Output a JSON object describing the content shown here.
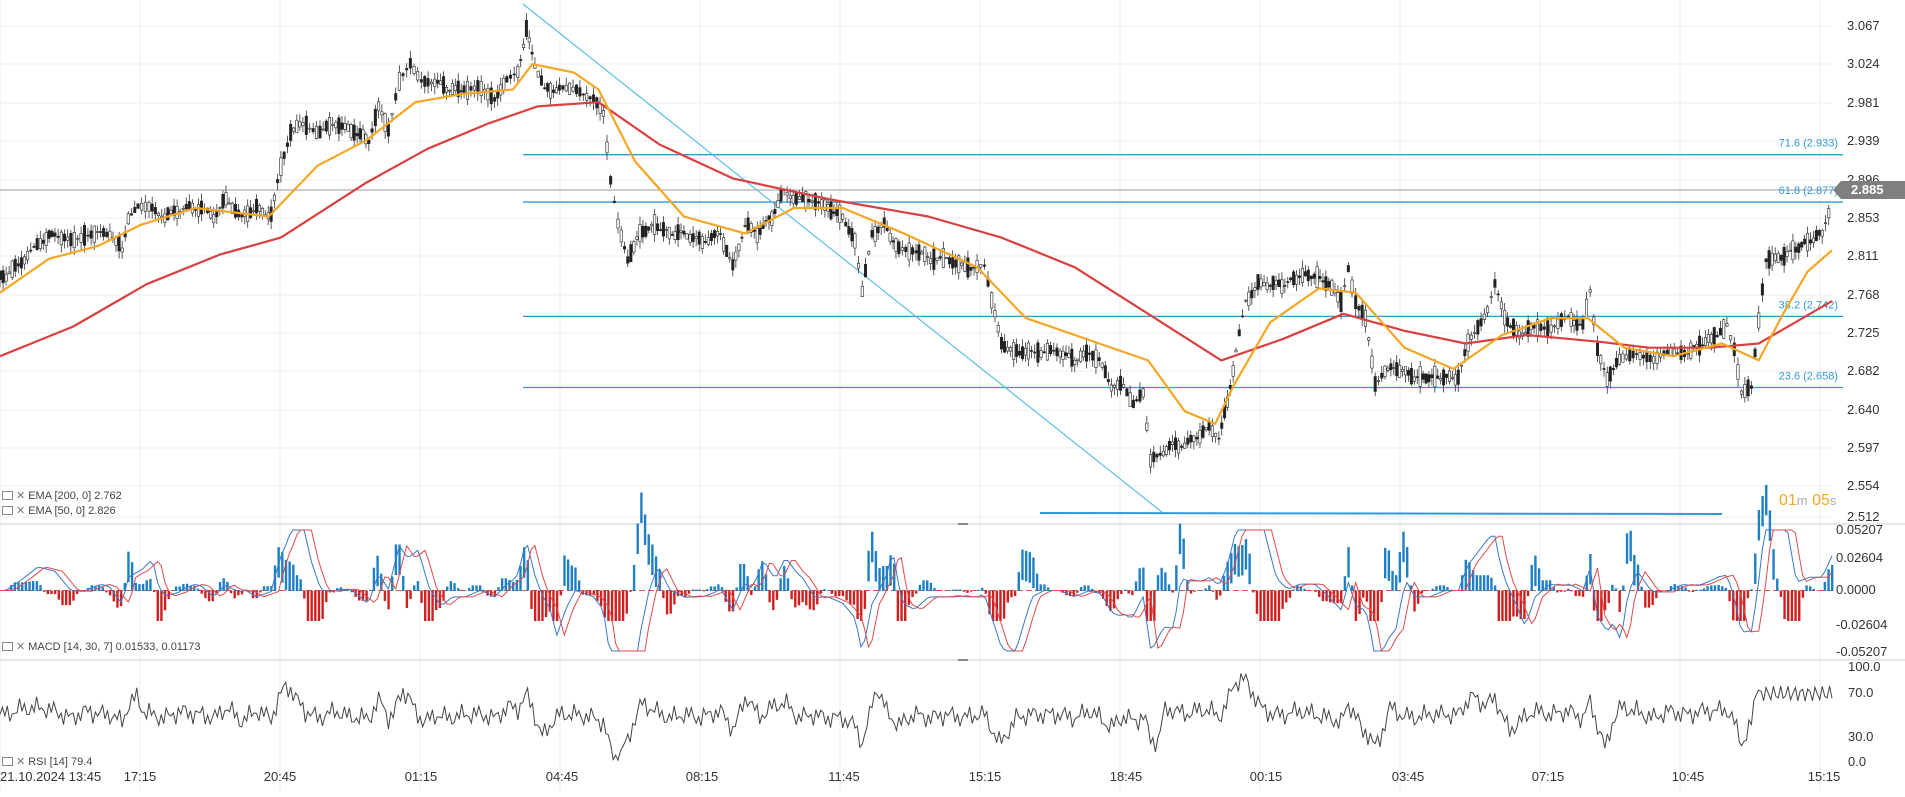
{
  "chart_data": [
    {
      "type": "candlestick",
      "panel": "price",
      "time_labels": [
        "21.10.2024  13:45",
        "17:15",
        "20:45",
        "01:15",
        "04:45",
        "08:15",
        "11:45",
        "15:15",
        "18:45",
        "00:15",
        "03:45",
        "07:15",
        "10:45",
        "15:15"
      ],
      "y_ticks": [
        "3.067",
        "3.024",
        "2.981",
        "2.939",
        "2.896",
        "2.853",
        "2.811",
        "2.768",
        "2.725",
        "2.682",
        "2.640",
        "2.597",
        "2.554",
        "2.512"
      ],
      "ylim": [
        2.505,
        3.085
      ],
      "current_price": "2.885",
      "price_series": [
        [
          0,
          2.79
        ],
        [
          5,
          2.79
        ],
        [
          20,
          2.81
        ],
        [
          33,
          2.83
        ],
        [
          45,
          2.84
        ],
        [
          58,
          2.83
        ],
        [
          72,
          2.84
        ],
        [
          90,
          2.84
        ],
        [
          100,
          2.82
        ],
        [
          105,
          2.86
        ],
        [
          113,
          2.87
        ],
        [
          122,
          2.87
        ],
        [
          135,
          2.86
        ],
        [
          150,
          2.87
        ],
        [
          165,
          2.87
        ],
        [
          175,
          2.86
        ],
        [
          185,
          2.88
        ],
        [
          198,
          2.86
        ],
        [
          210,
          2.87
        ],
        [
          222,
          2.86
        ],
        [
          230,
          2.92
        ],
        [
          238,
          2.96
        ],
        [
          248,
          2.97
        ],
        [
          262,
          2.96
        ],
        [
          275,
          2.97
        ],
        [
          290,
          2.96
        ],
        [
          302,
          2.95
        ],
        [
          310,
          2.99
        ],
        [
          318,
          2.96
        ],
        [
          327,
          3.02
        ],
        [
          336,
          3.04
        ],
        [
          345,
          3.02
        ],
        [
          356,
          3.02
        ],
        [
          368,
          3.01
        ],
        [
          380,
          3.01
        ],
        [
          394,
          3.01
        ],
        [
          405,
          3.0
        ],
        [
          415,
          3.02
        ],
        [
          424,
          3.03
        ],
        [
          431,
          3.08
        ],
        [
          438,
          3.04
        ],
        [
          446,
          3.01
        ],
        [
          458,
          3.01
        ],
        [
          472,
          3.01
        ],
        [
          486,
          3.0
        ],
        [
          494,
          2.98
        ],
        [
          500,
          2.9
        ],
        [
          506,
          2.85
        ],
        [
          514,
          2.81
        ],
        [
          524,
          2.84
        ],
        [
          536,
          2.85
        ],
        [
          548,
          2.84
        ],
        [
          560,
          2.84
        ],
        [
          575,
          2.83
        ],
        [
          590,
          2.84
        ],
        [
          600,
          2.8
        ],
        [
          610,
          2.85
        ],
        [
          620,
          2.84
        ],
        [
          632,
          2.86
        ],
        [
          642,
          2.89
        ],
        [
          652,
          2.88
        ],
        [
          665,
          2.88
        ],
        [
          678,
          2.87
        ],
        [
          690,
          2.86
        ],
        [
          700,
          2.83
        ],
        [
          706,
          2.77
        ],
        [
          714,
          2.84
        ],
        [
          724,
          2.85
        ],
        [
          736,
          2.82
        ],
        [
          750,
          2.82
        ],
        [
          762,
          2.81
        ],
        [
          775,
          2.81
        ],
        [
          790,
          2.8
        ],
        [
          800,
          2.8
        ],
        [
          806,
          2.8
        ],
        [
          812,
          2.76
        ],
        [
          820,
          2.71
        ],
        [
          830,
          2.7
        ],
        [
          842,
          2.7
        ],
        [
          855,
          2.7
        ],
        [
          868,
          2.7
        ],
        [
          880,
          2.69
        ],
        [
          892,
          2.7
        ],
        [
          900,
          2.69
        ],
        [
          910,
          2.66
        ],
        [
          920,
          2.66
        ],
        [
          928,
          2.64
        ],
        [
          936,
          2.65
        ],
        [
          942,
          2.57
        ],
        [
          950,
          2.58
        ],
        [
          960,
          2.59
        ],
        [
          970,
          2.59
        ],
        [
          980,
          2.6
        ],
        [
          990,
          2.61
        ],
        [
          998,
          2.6
        ],
        [
          1005,
          2.64
        ],
        [
          1012,
          2.7
        ],
        [
          1020,
          2.76
        ],
        [
          1030,
          2.78
        ],
        [
          1040,
          2.78
        ],
        [
          1052,
          2.78
        ],
        [
          1064,
          2.79
        ],
        [
          1076,
          2.79
        ],
        [
          1088,
          2.78
        ],
        [
          1098,
          2.76
        ],
        [
          1104,
          2.8
        ],
        [
          1110,
          2.76
        ],
        [
          1118,
          2.74
        ],
        [
          1126,
          2.66
        ],
        [
          1134,
          2.68
        ],
        [
          1146,
          2.68
        ],
        [
          1158,
          2.67
        ],
        [
          1170,
          2.67
        ],
        [
          1182,
          2.67
        ],
        [
          1194,
          2.67
        ],
        [
          1202,
          2.71
        ],
        [
          1210,
          2.73
        ],
        [
          1218,
          2.75
        ],
        [
          1224,
          2.78
        ],
        [
          1232,
          2.74
        ],
        [
          1244,
          2.72
        ],
        [
          1256,
          2.73
        ],
        [
          1270,
          2.73
        ],
        [
          1284,
          2.74
        ],
        [
          1296,
          2.73
        ],
        [
          1302,
          2.77
        ],
        [
          1308,
          2.7
        ],
        [
          1316,
          2.67
        ],
        [
          1326,
          2.69
        ],
        [
          1340,
          2.7
        ],
        [
          1354,
          2.69
        ],
        [
          1368,
          2.7
        ],
        [
          1382,
          2.7
        ],
        [
          1394,
          2.71
        ],
        [
          1406,
          2.72
        ],
        [
          1414,
          2.73
        ],
        [
          1420,
          2.7
        ],
        [
          1426,
          2.65
        ],
        [
          1434,
          2.66
        ],
        [
          1440,
          2.74
        ],
        [
          1446,
          2.81
        ],
        [
          1456,
          2.81
        ],
        [
          1468,
          2.82
        ],
        [
          1480,
          2.83
        ],
        [
          1492,
          2.84
        ],
        [
          1500,
          2.88
        ]
      ],
      "ema200_series": [
        [
          0,
          2.695
        ],
        [
          60,
          2.73
        ],
        [
          120,
          2.78
        ],
        [
          180,
          2.815
        ],
        [
          230,
          2.835
        ],
        [
          300,
          2.9
        ],
        [
          350,
          2.94
        ],
        [
          400,
          2.97
        ],
        [
          440,
          2.99
        ],
        [
          490,
          2.995
        ],
        [
          540,
          2.945
        ],
        [
          600,
          2.905
        ],
        [
          680,
          2.88
        ],
        [
          760,
          2.86
        ],
        [
          820,
          2.835
        ],
        [
          880,
          2.8
        ],
        [
          940,
          2.745
        ],
        [
          1000,
          2.69
        ],
        [
          1050,
          2.715
        ],
        [
          1100,
          2.745
        ],
        [
          1150,
          2.725
        ],
        [
          1200,
          2.71
        ],
        [
          1250,
          2.72
        ],
        [
          1310,
          2.712
        ],
        [
          1350,
          2.705
        ],
        [
          1400,
          2.705
        ],
        [
          1440,
          2.71
        ],
        [
          1470,
          2.735
        ],
        [
          1500,
          2.76
        ]
      ],
      "ema50_series": [
        [
          0,
          2.77
        ],
        [
          40,
          2.81
        ],
        [
          80,
          2.825
        ],
        [
          115,
          2.85
        ],
        [
          160,
          2.87
        ],
        [
          220,
          2.86
        ],
        [
          260,
          2.92
        ],
        [
          300,
          2.95
        ],
        [
          340,
          2.995
        ],
        [
          380,
          3.005
        ],
        [
          420,
          3.01
        ],
        [
          436,
          3.04
        ],
        [
          470,
          3.03
        ],
        [
          490,
          3.01
        ],
        [
          520,
          2.925
        ],
        [
          560,
          2.86
        ],
        [
          610,
          2.84
        ],
        [
          650,
          2.87
        ],
        [
          690,
          2.87
        ],
        [
          740,
          2.84
        ],
        [
          800,
          2.8
        ],
        [
          840,
          2.74
        ],
        [
          900,
          2.71
        ],
        [
          940,
          2.69
        ],
        [
          970,
          2.63
        ],
        [
          995,
          2.615
        ],
        [
          1010,
          2.66
        ],
        [
          1040,
          2.735
        ],
        [
          1080,
          2.775
        ],
        [
          1110,
          2.77
        ],
        [
          1150,
          2.705
        ],
        [
          1190,
          2.68
        ],
        [
          1230,
          2.72
        ],
        [
          1270,
          2.74
        ],
        [
          1300,
          2.74
        ],
        [
          1330,
          2.705
        ],
        [
          1370,
          2.695
        ],
        [
          1410,
          2.71
        ],
        [
          1440,
          2.69
        ],
        [
          1460,
          2.745
        ],
        [
          1480,
          2.795
        ],
        [
          1500,
          2.82
        ]
      ],
      "fibonacci_levels": [
        {
          "label": "71.6 (2.933)",
          "price": 2.933
        },
        {
          "label": "61.8 (2.877)",
          "price": 2.877
        },
        {
          "label": "38.2 (2.742)",
          "price": 2.742
        },
        {
          "label": "23.6 (2.658)",
          "price": 2.658
        }
      ],
      "trend_line": {
        "from": [
          431,
          3.08
        ],
        "to": [
          958,
          2.512
        ]
      },
      "base_line": {
        "price": 2.512,
        "x_from": 856,
        "x_to": 1418
      },
      "legend": [
        {
          "text": "EMA [200,  0] 2.762",
          "color": "#d94040"
        },
        {
          "text": "EMA [50,  0] 2.826",
          "color": "#f5a623"
        }
      ],
      "timer": {
        "minutes": "01",
        "m": "m",
        "seconds": "05",
        "s": "s"
      }
    },
    {
      "type": "histogram+line",
      "panel": "macd",
      "label": "MACD [14,  30,  7] 0.01533,  0.01173",
      "y_ticks": [
        "0.05207",
        "0.02604",
        "0.0000",
        "-0.02604",
        "-0.05207"
      ],
      "ylim": [
        -0.05207,
        0.05207
      ]
    },
    {
      "type": "line",
      "panel": "rsi",
      "label": "RSI [14]  79.4",
      "y_ticks": [
        "100.0",
        "70.0",
        "30.0",
        "0.0"
      ],
      "ylim": [
        0,
        100
      ]
    }
  ],
  "colors": {
    "ema200": "#d94040",
    "ema50": "#f5a623",
    "fib": "#2f9bd6",
    "trend": "#5bbde8",
    "up": "#2a2a2a",
    "macd_pos": "#1f7fc4",
    "macd_neg": "#d01f1f",
    "rsi": "#444444",
    "grid": "#ececec"
  }
}
